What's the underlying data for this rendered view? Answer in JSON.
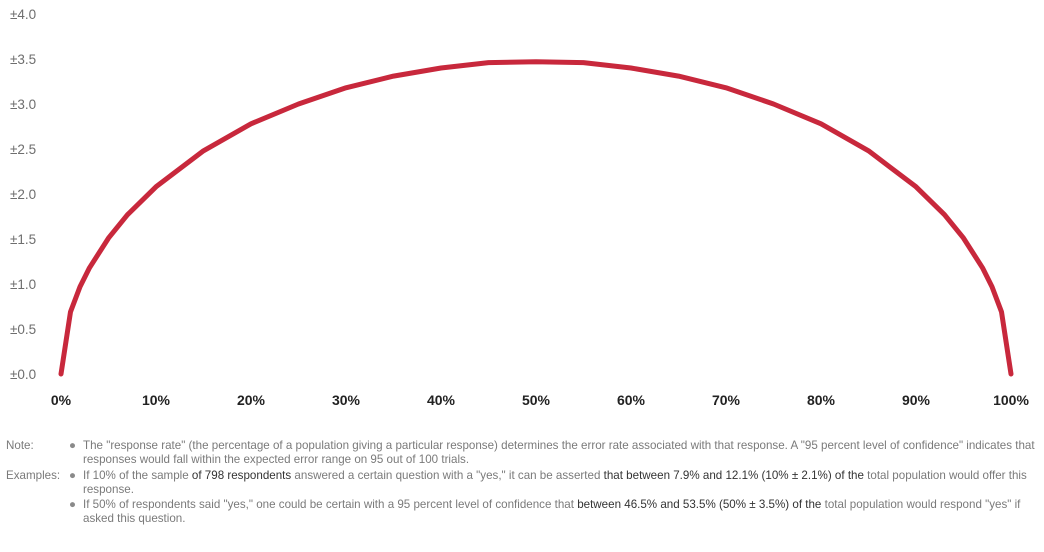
{
  "chart_data": {
    "type": "line",
    "x_ticks": [
      "0%",
      "10%",
      "20%",
      "30%",
      "40%",
      "50%",
      "60%",
      "70%",
      "80%",
      "90%",
      "100%"
    ],
    "y_ticks": [
      "±0.0",
      "±0.5",
      "±1.0",
      "±1.5",
      "±2.0",
      "±2.5",
      "±3.0",
      "±3.5",
      "±4.0"
    ],
    "xlim": [
      0,
      100
    ],
    "ylim": [
      0,
      4
    ],
    "series": [
      {
        "color": "#c8283c",
        "x": [
          0,
          1,
          2,
          3,
          5,
          7,
          10,
          15,
          20,
          25,
          30,
          35,
          40,
          45,
          50,
          55,
          60,
          65,
          70,
          75,
          80,
          85,
          90,
          93,
          95,
          97,
          98,
          99,
          100
        ],
        "y": [
          0.0,
          0.69,
          0.97,
          1.18,
          1.51,
          1.77,
          2.08,
          2.48,
          2.78,
          3.0,
          3.18,
          3.31,
          3.4,
          3.46,
          3.47,
          3.46,
          3.4,
          3.31,
          3.18,
          3.0,
          2.78,
          2.48,
          2.08,
          1.77,
          1.51,
          1.18,
          0.97,
          0.69,
          0.0
        ]
      }
    ],
    "grid": false,
    "legend": "none"
  },
  "notes": {
    "note_label": "Note:",
    "note_text": "The \"response rate\" (the percentage of a population giving a particular response) determines the error rate associated with that response. A \"95 percent level of confidence\" indicates that responses would fall within the expected error range on 95 out of 100 trials.",
    "examples_label": "Examples:",
    "ex1": {
      "a": "If 10% of the sample ",
      "b": "of 798 respondents",
      "c": " answered a certain question with a \"yes,\" it can be asserted ",
      "d": "that between 7.9% and 12.1% (10% ± 2.1%) of the",
      "e": " total population would offer this response."
    },
    "ex2": {
      "a": "If 50% of respondents said \"yes,\" one could be certain with a 95 percent level of confidence that ",
      "b": "between 46.5% and 53.5% (50% ± 3.5%) of the",
      "c": " total population would respond \"yes\" if asked this question."
    }
  }
}
